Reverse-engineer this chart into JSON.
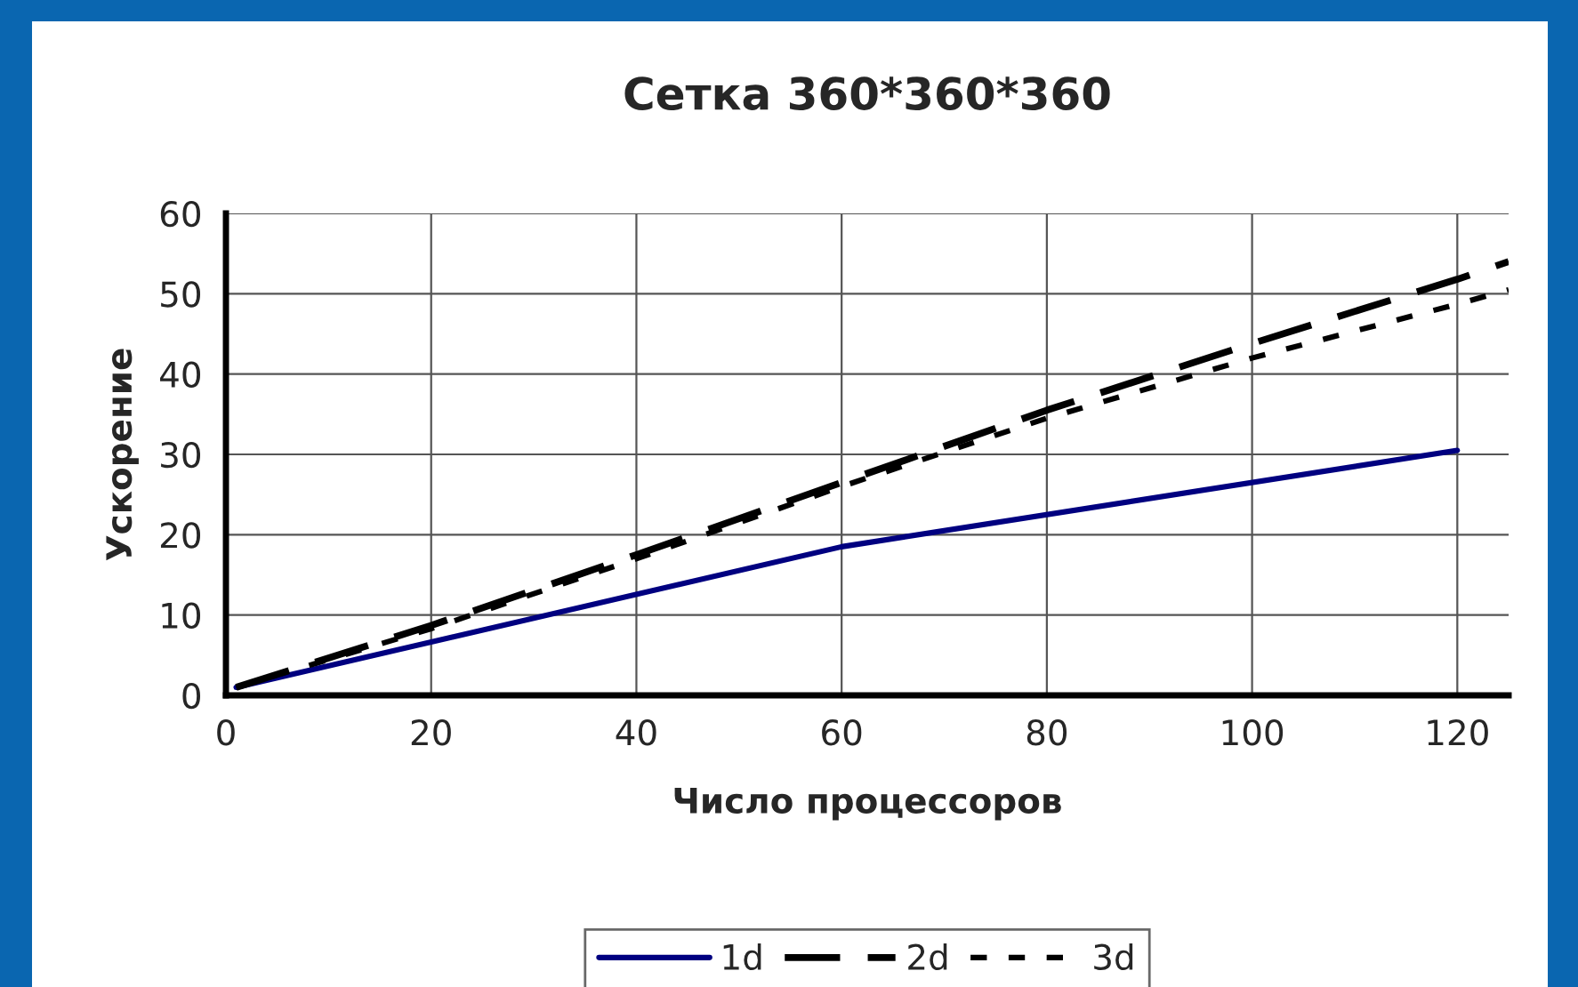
{
  "chart_data": {
    "type": "line",
    "title": "Сетка 360*360*360",
    "xlabel": "Число процессоров",
    "ylabel": "Ускорение",
    "xlim": [
      0,
      125
    ],
    "xticks": [
      0,
      20,
      40,
      60,
      80,
      100,
      120
    ],
    "ylim": [
      0,
      60
    ],
    "yticks": [
      0,
      10,
      20,
      30,
      40,
      50,
      60
    ],
    "grid": true,
    "legend": "bottom",
    "marker": "none",
    "series": [
      {
        "name": "1d",
        "color": "#000080",
        "line_style": "solid",
        "x": [
          1,
          60,
          120
        ],
        "values": [
          1,
          18.5,
          30.5
        ]
      },
      {
        "name": "2d",
        "color": "#000000",
        "line_style": "dashed",
        "x": [
          1,
          20,
          40,
          60,
          80,
          100,
          120,
          125
        ],
        "values": [
          1,
          8.7,
          17.5,
          26.5,
          35.5,
          43.8,
          51.8,
          54
        ]
      },
      {
        "name": "3d",
        "color": "#000000",
        "line_style": "dotted",
        "x": [
          1,
          20,
          40,
          60,
          80,
          100,
          120,
          125
        ],
        "values": [
          1,
          8.3,
          17,
          26,
          34.5,
          42,
          48.7,
          50.5
        ]
      }
    ]
  }
}
